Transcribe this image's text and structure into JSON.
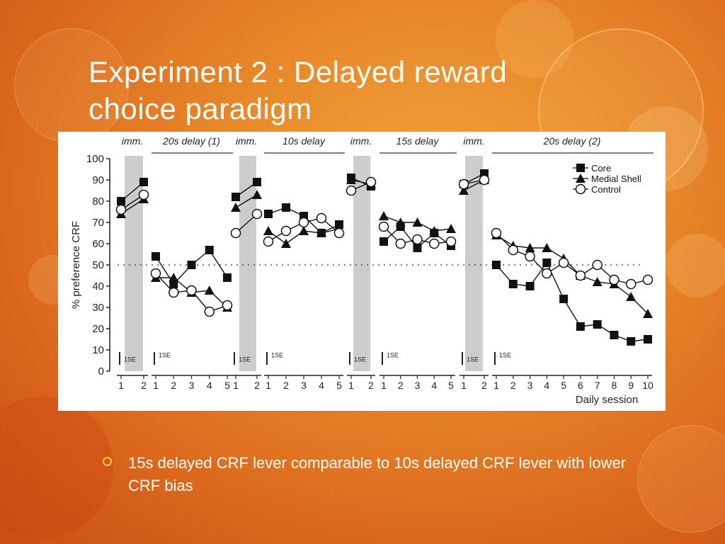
{
  "slide": {
    "title_line1": "Experiment 2 : Delayed reward",
    "title_line2": "choice paradigm",
    "bullet": "15s delayed CRF lever comparable to 10s delayed CRF lever with lower CRF bias",
    "colors": {
      "background": "#e8892a",
      "bullet_marker": "#f7d34a",
      "text": "#ffffff"
    }
  },
  "chart_data": {
    "type": "line",
    "ylabel": "% preference CRF",
    "xlabel": "Daily session",
    "ylim": [
      0,
      100
    ],
    "yticks": [
      0,
      10,
      20,
      30,
      40,
      50,
      60,
      70,
      80,
      90,
      100
    ],
    "reference_line": 50,
    "se_label": "1SE",
    "legend_position": "top-right",
    "legend": [
      "Core",
      "Medial Shell",
      "Control"
    ],
    "panels": [
      {
        "label": "imm.",
        "shaded": true,
        "sessions": [
          1,
          2
        ],
        "series": {
          "core": [
            80,
            89
          ],
          "shell": [
            74,
            81
          ],
          "control": [
            76,
            83
          ]
        }
      },
      {
        "label": "20s delay (1)",
        "shaded": false,
        "sessions": [
          1,
          2,
          3,
          4,
          5
        ],
        "series": {
          "core": [
            54,
            41,
            50,
            57,
            44
          ],
          "shell": [
            44,
            44,
            37,
            38,
            30
          ],
          "control": [
            46,
            37,
            38,
            28,
            31
          ]
        }
      },
      {
        "label": "imm.",
        "shaded": true,
        "sessions": [
          1,
          2
        ],
        "series": {
          "core": [
            82,
            89
          ],
          "shell": [
            77,
            83
          ],
          "control": [
            65,
            74
          ]
        }
      },
      {
        "label": "10s delay",
        "shaded": false,
        "sessions": [
          1,
          2,
          3,
          4,
          5
        ],
        "series": {
          "core": [
            74,
            77,
            73,
            65,
            69
          ],
          "shell": [
            66,
            60,
            66,
            65,
            67
          ],
          "control": [
            61,
            66,
            70,
            72,
            65
          ]
        }
      },
      {
        "label": "imm.",
        "shaded": true,
        "sessions": [
          1,
          2
        ],
        "series": {
          "core": [
            91,
            87
          ],
          "shell": [
            90,
            88
          ],
          "control": [
            85,
            89
          ]
        }
      },
      {
        "label": "15s delay",
        "shaded": false,
        "sessions": [
          1,
          2,
          3,
          4,
          5
        ],
        "series": {
          "core": [
            61,
            68,
            58,
            65,
            59
          ],
          "shell": [
            73,
            70,
            70,
            66,
            67
          ],
          "control": [
            68,
            60,
            62,
            60,
            61
          ]
        }
      },
      {
        "label": "imm.",
        "shaded": true,
        "sessions": [
          1,
          2
        ],
        "series": {
          "core": [
            88,
            93
          ],
          "shell": [
            85,
            90
          ],
          "control": [
            88,
            90
          ]
        }
      },
      {
        "label": "20s delay (2)",
        "shaded": false,
        "sessions": [
          1,
          2,
          3,
          4,
          5,
          6,
          7,
          8,
          9,
          10
        ],
        "series": {
          "core": [
            50,
            41,
            40,
            51,
            34,
            21,
            22,
            17,
            14,
            15
          ],
          "shell": [
            64,
            59,
            58,
            58,
            53,
            45,
            42,
            41,
            35,
            27
          ],
          "control": [
            65,
            57,
            54,
            46,
            51,
            45,
            50,
            43,
            41,
            43
          ]
        }
      }
    ]
  }
}
